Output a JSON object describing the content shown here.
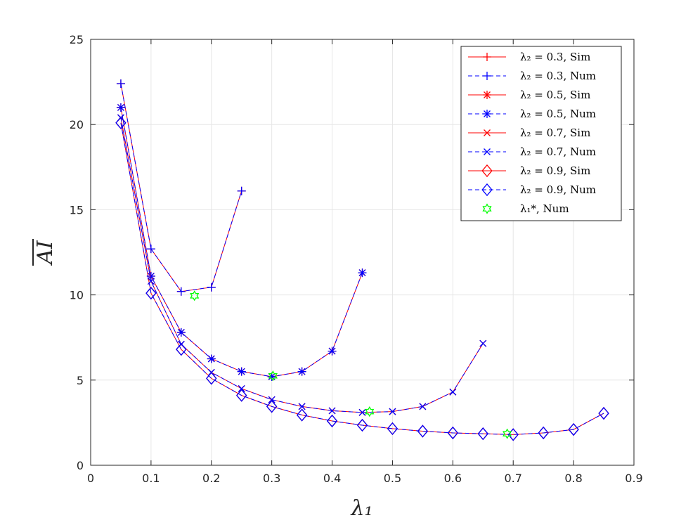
{
  "chart_data": {
    "type": "line",
    "title": "",
    "xlabel": "λ₁",
    "ylabel": "AI",
    "ylabel_overline": true,
    "xlim": [
      0,
      0.9
    ],
    "ylim": [
      0,
      25
    ],
    "xticks": [
      "0",
      "0.1",
      "0.2",
      "0.3",
      "0.4",
      "0.5",
      "0.6",
      "0.7",
      "0.8",
      "0.9"
    ],
    "yticks": [
      "0",
      "5",
      "10",
      "15",
      "20",
      "25"
    ],
    "grid": true,
    "legend_position": "top-right",
    "series": [
      {
        "name": "λ₂ = 0.3, Sim",
        "color": "#ff0000",
        "dash": "solid",
        "marker": "plus",
        "x": [
          0.05,
          0.1,
          0.15,
          0.2,
          0.25
        ],
        "y": [
          22.4,
          12.7,
          10.2,
          10.45,
          16.1
        ]
      },
      {
        "name": "λ₂ = 0.3, Num",
        "color": "#0000ff",
        "dash": "dashed",
        "marker": "plus",
        "x": [
          0.05,
          0.1,
          0.15,
          0.2,
          0.25
        ],
        "y": [
          22.4,
          12.7,
          10.2,
          10.45,
          16.1
        ]
      },
      {
        "name": "λ₂ = 0.5, Sim",
        "color": "#ff0000",
        "dash": "solid",
        "marker": "asterisk",
        "x": [
          0.05,
          0.1,
          0.15,
          0.2,
          0.25,
          0.3,
          0.35,
          0.4,
          0.45
        ],
        "y": [
          21.0,
          11.1,
          7.8,
          6.25,
          5.5,
          5.2,
          5.5,
          6.7,
          11.3
        ]
      },
      {
        "name": "λ₂ = 0.5, Num",
        "color": "#0000ff",
        "dash": "dashed",
        "marker": "asterisk",
        "x": [
          0.05,
          0.1,
          0.15,
          0.2,
          0.25,
          0.3,
          0.35,
          0.4,
          0.45
        ],
        "y": [
          21.0,
          11.1,
          7.8,
          6.25,
          5.5,
          5.2,
          5.5,
          6.7,
          11.3
        ]
      },
      {
        "name": "λ₂ = 0.7, Sim",
        "color": "#ff0000",
        "dash": "solid",
        "marker": "x",
        "x": [
          0.05,
          0.1,
          0.15,
          0.2,
          0.25,
          0.3,
          0.35,
          0.4,
          0.45,
          0.5,
          0.55,
          0.6,
          0.65
        ],
        "y": [
          20.4,
          10.8,
          7.1,
          5.45,
          4.5,
          3.85,
          3.45,
          3.2,
          3.1,
          3.15,
          3.45,
          4.3,
          7.15
        ]
      },
      {
        "name": "λ₂ = 0.7, Num",
        "color": "#0000ff",
        "dash": "dashed",
        "marker": "x",
        "x": [
          0.05,
          0.1,
          0.15,
          0.2,
          0.25,
          0.3,
          0.35,
          0.4,
          0.45,
          0.5,
          0.55,
          0.6,
          0.65
        ],
        "y": [
          20.4,
          10.8,
          7.1,
          5.45,
          4.5,
          3.85,
          3.45,
          3.2,
          3.1,
          3.15,
          3.45,
          4.3,
          7.15
        ]
      },
      {
        "name": "λ₂ = 0.9, Sim",
        "color": "#ff0000",
        "dash": "solid",
        "marker": "diamond",
        "x": [
          0.05,
          0.1,
          0.15,
          0.2,
          0.25,
          0.3,
          0.35,
          0.4,
          0.45,
          0.5,
          0.55,
          0.6,
          0.65,
          0.7,
          0.75,
          0.8,
          0.85
        ],
        "y": [
          20.1,
          10.1,
          6.8,
          5.1,
          4.1,
          3.45,
          2.95,
          2.6,
          2.35,
          2.15,
          2.0,
          1.9,
          1.85,
          1.8,
          1.9,
          2.1,
          3.05
        ]
      },
      {
        "name": "λ₂ = 0.9, Num",
        "color": "#0000ff",
        "dash": "dashed",
        "marker": "diamond",
        "x": [
          0.05,
          0.1,
          0.15,
          0.2,
          0.25,
          0.3,
          0.35,
          0.4,
          0.45,
          0.5,
          0.55,
          0.6,
          0.65,
          0.7,
          0.75,
          0.8,
          0.85
        ],
        "y": [
          20.1,
          10.1,
          6.8,
          5.1,
          4.1,
          3.45,
          2.95,
          2.6,
          2.35,
          2.15,
          2.0,
          1.9,
          1.85,
          1.8,
          1.9,
          2.1,
          3.05
        ]
      },
      {
        "name": "λ₁*, Num",
        "color": "#00ff00",
        "dash": "none",
        "marker": "hexagram",
        "x": [
          0.172,
          0.302,
          0.462,
          0.69
        ],
        "y": [
          9.95,
          5.25,
          3.15,
          1.85
        ]
      }
    ]
  }
}
